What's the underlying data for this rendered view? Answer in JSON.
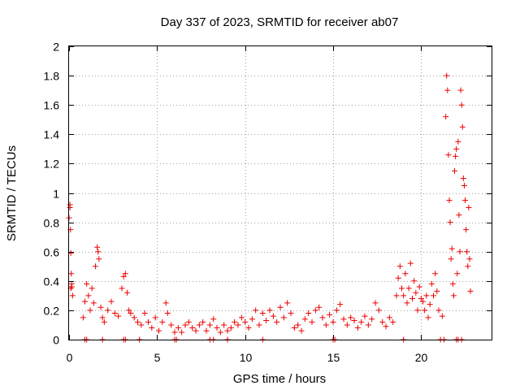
{
  "chart_data": {
    "type": "scatter",
    "title": "Day 337 of 2023, SRMTID for receiver ab07",
    "xlabel": "GPS time / hours",
    "ylabel": "SRMTID / TECUs",
    "xlim": [
      0,
      24
    ],
    "ylim": [
      0,
      2
    ],
    "xticks": [
      0,
      5,
      10,
      15,
      20
    ],
    "xtick_labels": [
      "0",
      "5",
      "10",
      "15",
      "20"
    ],
    "yticks": [
      0,
      0.2,
      0.4,
      0.6,
      0.8,
      1,
      1.2,
      1.4,
      1.6,
      1.8,
      2
    ],
    "ytick_labels": [
      "0",
      "0.2",
      "0.4",
      "0.6",
      "0.8",
      "1",
      "1.2",
      "1.4",
      "1.6",
      "1.8",
      "2"
    ],
    "grid": true,
    "marker": "+",
    "marker_color": "#ee0000",
    "series": [
      {
        "name": "SRMTID",
        "x": [
          0.0,
          0.05,
          0.08,
          0.1,
          0.12,
          0.15,
          0.2,
          0.05,
          0.1,
          0.15,
          0.8,
          0.9,
          1.0,
          1.1,
          1.2,
          1.3,
          1.4,
          1.5,
          1.6,
          1.65,
          1.7,
          1.8,
          1.9,
          2.0,
          2.2,
          2.4,
          2.6,
          2.8,
          3.0,
          3.1,
          3.2,
          3.3,
          3.4,
          3.5,
          3.7,
          3.9,
          4.1,
          4.3,
          4.5,
          4.7,
          4.9,
          5.1,
          5.3,
          5.5,
          5.6,
          5.8,
          6.0,
          6.2,
          6.4,
          6.6,
          6.8,
          7.0,
          7.2,
          7.4,
          7.6,
          7.8,
          8.0,
          8.2,
          8.4,
          8.6,
          8.8,
          9.0,
          9.2,
          9.4,
          9.6,
          9.8,
          10.0,
          10.2,
          10.4,
          10.6,
          10.8,
          11.0,
          11.2,
          11.4,
          11.6,
          11.8,
          12.0,
          12.2,
          12.4,
          12.6,
          12.8,
          13.0,
          13.2,
          13.4,
          13.6,
          13.8,
          14.0,
          14.2,
          14.4,
          14.6,
          14.8,
          15.0,
          15.2,
          15.4,
          15.6,
          15.8,
          16.0,
          16.2,
          16.4,
          16.6,
          16.8,
          17.0,
          17.2,
          17.4,
          17.6,
          17.8,
          18.0,
          18.2,
          18.4,
          18.6,
          18.7,
          18.8,
          18.9,
          19.0,
          19.1,
          19.2,
          19.3,
          19.4,
          19.5,
          19.6,
          19.7,
          19.8,
          19.9,
          20.0,
          20.1,
          20.2,
          20.3,
          20.4,
          20.5,
          20.6,
          20.7,
          20.8,
          20.9,
          21.0,
          21.2,
          21.4,
          21.45,
          21.5,
          21.55,
          21.6,
          21.65,
          21.7,
          21.75,
          21.8,
          21.85,
          21.9,
          21.95,
          22.0,
          22.05,
          22.1,
          22.15,
          22.2,
          22.25,
          22.3,
          22.35,
          22.4,
          22.45,
          22.5,
          22.55,
          22.6,
          22.65,
          22.7,
          22.75,
          22.8,
          0.9,
          1.0,
          1.9,
          3.1,
          3.2,
          4.0,
          6.0,
          6.1,
          8.0,
          8.2,
          9.0,
          11.0,
          15.0,
          15.1,
          19.0,
          21.1,
          21.3,
          22.0,
          22.1,
          22.3
        ],
        "y": [
          0.83,
          0.92,
          0.75,
          0.59,
          0.45,
          0.38,
          0.3,
          0.9,
          0.35,
          0.36,
          0.15,
          0.26,
          0.38,
          0.3,
          0.2,
          0.35,
          0.25,
          0.5,
          0.63,
          0.6,
          0.55,
          0.22,
          0.15,
          0.12,
          0.2,
          0.26,
          0.18,
          0.16,
          0.35,
          0.43,
          0.45,
          0.32,
          0.2,
          0.18,
          0.15,
          0.12,
          0.1,
          0.18,
          0.12,
          0.08,
          0.15,
          0.06,
          0.12,
          0.25,
          0.18,
          0.1,
          0.05,
          0.08,
          0.05,
          0.1,
          0.12,
          0.08,
          0.06,
          0.1,
          0.12,
          0.06,
          0.1,
          0.14,
          0.08,
          0.05,
          0.1,
          0.06,
          0.08,
          0.12,
          0.1,
          0.15,
          0.12,
          0.08,
          0.14,
          0.2,
          0.1,
          0.18,
          0.13,
          0.2,
          0.16,
          0.12,
          0.22,
          0.15,
          0.25,
          0.18,
          0.08,
          0.1,
          0.06,
          0.14,
          0.18,
          0.12,
          0.2,
          0.22,
          0.15,
          0.1,
          0.17,
          0.12,
          0.2,
          0.24,
          0.14,
          0.1,
          0.15,
          0.13,
          0.08,
          0.12,
          0.16,
          0.1,
          0.14,
          0.25,
          0.2,
          0.12,
          0.09,
          0.15,
          0.12,
          0.3,
          0.42,
          0.5,
          0.35,
          0.3,
          0.45,
          0.25,
          0.35,
          0.52,
          0.28,
          0.4,
          0.32,
          0.2,
          0.36,
          0.28,
          0.26,
          0.2,
          0.3,
          0.15,
          0.24,
          0.38,
          0.3,
          0.45,
          0.33,
          0.2,
          0.16,
          1.52,
          1.8,
          1.7,
          1.26,
          0.95,
          0.8,
          0.55,
          0.62,
          0.38,
          0.3,
          1.15,
          1.25,
          1.3,
          0.45,
          1.35,
          0.85,
          0.6,
          1.7,
          1.6,
          1.45,
          1.1,
          1.05,
          0.95,
          0.75,
          0.6,
          0.5,
          0.9,
          0.55,
          0.33,
          0.0,
          0.0,
          0.0,
          0.0,
          0.0,
          0.0,
          0.0,
          0.0,
          0.0,
          0.0,
          0.0,
          0.0,
          0.0,
          0.0,
          0.0,
          0.0,
          0.0,
          0.0,
          0.0,
          0.0
        ]
      }
    ]
  }
}
